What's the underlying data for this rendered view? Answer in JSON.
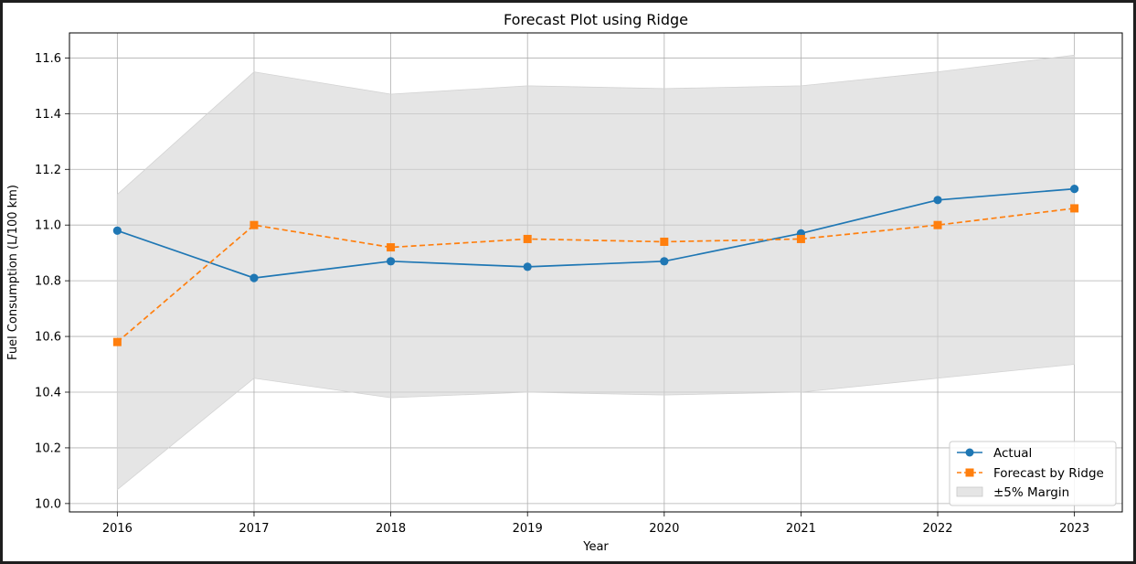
{
  "chart_data": {
    "type": "line",
    "title": "Forecast Plot using Ridge",
    "xlabel": "Year",
    "ylabel": "Fuel Consumption (L/100 km)",
    "x": [
      2016,
      2017,
      2018,
      2019,
      2020,
      2021,
      2022,
      2023
    ],
    "xticks": [
      "2016",
      "2017",
      "2018",
      "2019",
      "2020",
      "2021",
      "2022",
      "2023"
    ],
    "ylim": [
      9.97,
      11.69
    ],
    "yticks": [
      "10.0",
      "10.2",
      "10.4",
      "10.6",
      "10.8",
      "11.0",
      "11.2",
      "11.4",
      "11.6"
    ],
    "grid": true,
    "legend_position": "lower-right",
    "series": [
      {
        "name": "Actual",
        "style": "solid-circle",
        "color": "#1f77b4",
        "values": [
          10.98,
          10.81,
          10.87,
          10.85,
          10.87,
          10.97,
          11.09,
          11.13
        ]
      },
      {
        "name": "Forecast by Ridge",
        "style": "dashed-square",
        "color": "#ff7f0e",
        "values": [
          10.58,
          11.0,
          10.92,
          10.95,
          10.94,
          10.95,
          11.0,
          11.06
        ]
      }
    ],
    "band": {
      "name": "±5% Margin",
      "color": "#d3d3d3",
      "lower": [
        10.05,
        10.45,
        10.38,
        10.4,
        10.39,
        10.4,
        10.45,
        10.5
      ],
      "upper": [
        11.11,
        11.55,
        11.47,
        11.5,
        11.49,
        11.5,
        11.55,
        11.61
      ]
    }
  }
}
